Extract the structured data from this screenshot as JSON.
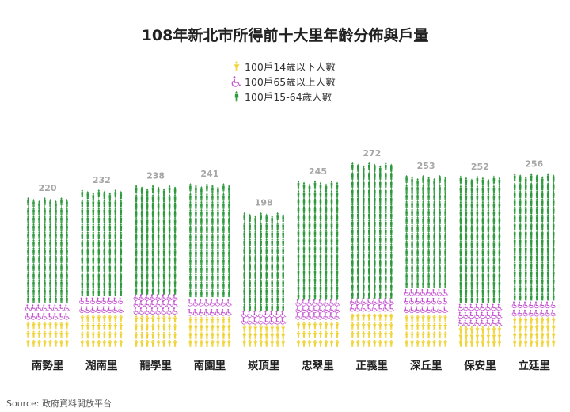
{
  "title": "108年新北市所得前十大里年齡分佈與戶量",
  "source": "Source: 政府資料開放平台",
  "legend": {
    "child": "100戶14歲以下人數",
    "elder": "100戶65歲以上人數",
    "adult": "100戶15-64歲人數"
  },
  "colors": {
    "child": "#f0d43a",
    "elder": "#c24fcf",
    "adult": "#2e9a3d",
    "value_label": "#a6a6a6"
  },
  "chart_data": {
    "type": "bar",
    "stacked": true,
    "unit": "每100戶人數",
    "categories": [
      "南勢里",
      "湖南里",
      "龍學里",
      "南園里",
      "崁頂里",
      "忠翠里",
      "正義里",
      "深丘里",
      "保安里",
      "立廷里"
    ],
    "totals": [
      220,
      232,
      238,
      241,
      198,
      245,
      272,
      253,
      252,
      256
    ],
    "series": [
      {
        "name": "100戶14歲以下人數",
        "key": "child",
        "values": [
          40,
          50,
          48,
          46,
          33,
          40,
          52,
          50,
          30,
          45
        ]
      },
      {
        "name": "100戶65歲以上人數",
        "key": "elder",
        "values": [
          25,
          26,
          30,
          28,
          20,
          30,
          20,
          38,
          35,
          24
        ]
      },
      {
        "name": "100戶15-64歲人數",
        "key": "adult",
        "values": [
          155,
          156,
          160,
          167,
          145,
          175,
          200,
          165,
          187,
          187
        ]
      }
    ]
  }
}
